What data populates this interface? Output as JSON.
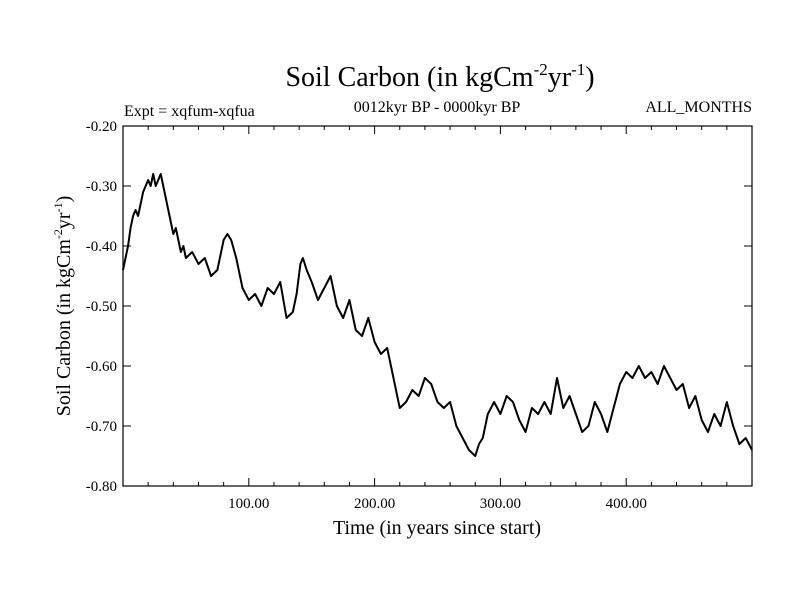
{
  "chart_data": {
    "type": "line",
    "title": {
      "main": "Soil Carbon (in kgCm",
      "sup1": "-2",
      "mid": "yr",
      "sup2": "-1",
      "end": ")"
    },
    "subtitle_left": "Expt = xqfum-xqfua",
    "subtitle_center": "0012kyr BP - 0000kyr BP",
    "subtitle_right": "ALL_MONTHS",
    "xlabel": "Time (in years since start)",
    "ylabel": {
      "main": "Soil Carbon (in kgCm",
      "sup1": "-2",
      "mid": "yr",
      "sup2": "-1",
      "end": ")"
    },
    "xlim": [
      0,
      500
    ],
    "ylim": [
      -0.8,
      -0.2
    ],
    "x_ticks": [
      100,
      200,
      300,
      400
    ],
    "x_tick_labels": [
      "100.00",
      "200.00",
      "300.00",
      "400.00"
    ],
    "y_ticks": [
      -0.2,
      -0.3,
      -0.4,
      -0.5,
      -0.6,
      -0.7,
      -0.8
    ],
    "y_tick_labels": [
      "-0.20",
      "-0.30",
      "-0.40",
      "-0.50",
      "-0.60",
      "-0.70",
      "-0.80"
    ],
    "series": [
      {
        "name": "Soil Carbon",
        "color": "#000000",
        "x": [
          0,
          2,
          4,
          6,
          8,
          10,
          12,
          14,
          16,
          18,
          20,
          22,
          24,
          26,
          28,
          30,
          32,
          34,
          36,
          38,
          40,
          42,
          44,
          46,
          48,
          50,
          55,
          60,
          65,
          70,
          75,
          80,
          83,
          86,
          90,
          95,
          100,
          105,
          110,
          115,
          120,
          125,
          130,
          135,
          138,
          141,
          143,
          146,
          150,
          155,
          160,
          165,
          170,
          175,
          180,
          185,
          190,
          195,
          200,
          205,
          210,
          215,
          220,
          225,
          230,
          235,
          240,
          245,
          250,
          255,
          260,
          265,
          270,
          275,
          280,
          283,
          286,
          290,
          295,
          300,
          305,
          310,
          315,
          320,
          325,
          330,
          335,
          340,
          345,
          350,
          355,
          360,
          365,
          370,
          375,
          380,
          385,
          390,
          395,
          400,
          405,
          410,
          415,
          420,
          425,
          430,
          435,
          440,
          445,
          450,
          455,
          460,
          465,
          470,
          475,
          480,
          485,
          490,
          495,
          500
        ],
        "values": [
          -0.44,
          -0.42,
          -0.4,
          -0.37,
          -0.35,
          -0.34,
          -0.35,
          -0.33,
          -0.31,
          -0.3,
          -0.29,
          -0.3,
          -0.28,
          -0.3,
          -0.29,
          -0.28,
          -0.3,
          -0.32,
          -0.34,
          -0.36,
          -0.38,
          -0.37,
          -0.39,
          -0.41,
          -0.4,
          -0.42,
          -0.41,
          -0.43,
          -0.42,
          -0.45,
          -0.44,
          -0.39,
          -0.38,
          -0.39,
          -0.42,
          -0.47,
          -0.49,
          -0.48,
          -0.5,
          -0.47,
          -0.48,
          -0.46,
          -0.52,
          -0.51,
          -0.48,
          -0.43,
          -0.42,
          -0.44,
          -0.46,
          -0.49,
          -0.47,
          -0.45,
          -0.5,
          -0.52,
          -0.49,
          -0.54,
          -0.55,
          -0.52,
          -0.56,
          -0.58,
          -0.57,
          -0.62,
          -0.67,
          -0.66,
          -0.64,
          -0.65,
          -0.62,
          -0.63,
          -0.66,
          -0.67,
          -0.66,
          -0.7,
          -0.72,
          -0.74,
          -0.75,
          -0.73,
          -0.72,
          -0.68,
          -0.66,
          -0.68,
          -0.65,
          -0.66,
          -0.69,
          -0.71,
          -0.67,
          -0.68,
          -0.66,
          -0.68,
          -0.62,
          -0.67,
          -0.65,
          -0.68,
          -0.71,
          -0.7,
          -0.66,
          -0.68,
          -0.71,
          -0.67,
          -0.63,
          -0.61,
          -0.62,
          -0.6,
          -0.62,
          -0.61,
          -0.63,
          -0.6,
          -0.62,
          -0.64,
          -0.63,
          -0.67,
          -0.65,
          -0.69,
          -0.71,
          -0.68,
          -0.7,
          -0.66,
          -0.7,
          -0.73,
          -0.72,
          -0.74
        ]
      }
    ]
  }
}
